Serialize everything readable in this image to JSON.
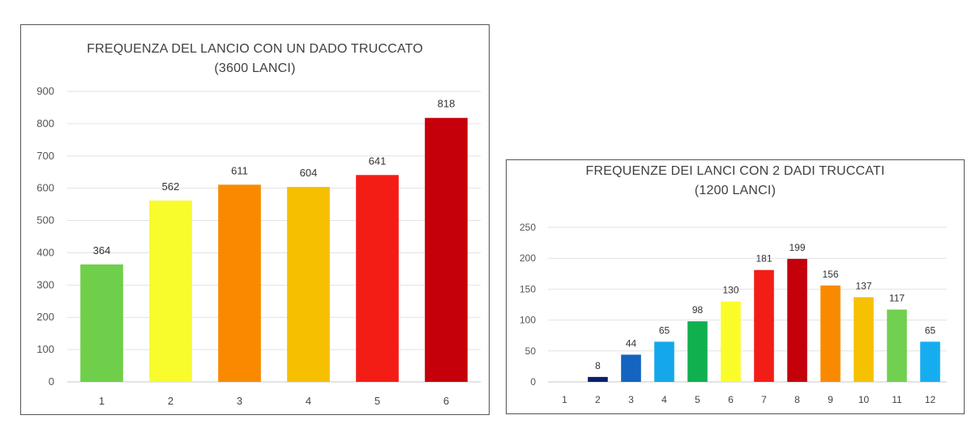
{
  "chart_data": [
    {
      "type": "bar",
      "title": "FREQUENZA DEL LANCIO CON UN DADO TRUCCATO",
      "subtitle": "(3600 LANCI)",
      "categories": [
        "1",
        "2",
        "3",
        "4",
        "5",
        "6"
      ],
      "values": [
        364,
        562,
        611,
        604,
        641,
        818
      ],
      "data_labels": [
        "364",
        "562",
        "611",
        "604",
        "641",
        "818"
      ],
      "colors": [
        "#6fcf4a",
        "#f8fc2c",
        "#f98a00",
        "#f6c000",
        "#f41d15",
        "#c6000b"
      ],
      "ylim": [
        0,
        900
      ],
      "yticks": [
        0,
        100,
        200,
        300,
        400,
        500,
        600,
        700,
        800,
        900
      ],
      "grid": true,
      "xlabel": "",
      "ylabel": ""
    },
    {
      "type": "bar",
      "title": "FREQUENZE DEI LANCI CON 2 DADI TRUCCATI",
      "subtitle": "(1200 LANCI)",
      "categories": [
        "1",
        "2",
        "3",
        "4",
        "5",
        "6",
        "7",
        "8",
        "9",
        "10",
        "11",
        "12"
      ],
      "values": [
        0,
        8,
        44,
        65,
        98,
        130,
        181,
        199,
        156,
        137,
        117,
        65
      ],
      "data_labels": [
        "",
        "8",
        "44",
        "65",
        "98",
        "130",
        "181",
        "199",
        "156",
        "137",
        "117",
        "65"
      ],
      "colors": [
        "#ffffff",
        "#0b1f6e",
        "#1464c0",
        "#14a8ea",
        "#10b04f",
        "#fafc2a",
        "#f31d18",
        "#c4000b",
        "#f98a00",
        "#f6c100",
        "#71d04f",
        "#16adf0"
      ],
      "ylim": [
        0,
        250
      ],
      "yticks": [
        0,
        50,
        100,
        150,
        200,
        250
      ],
      "grid": true,
      "xlabel": "",
      "ylabel": ""
    }
  ]
}
